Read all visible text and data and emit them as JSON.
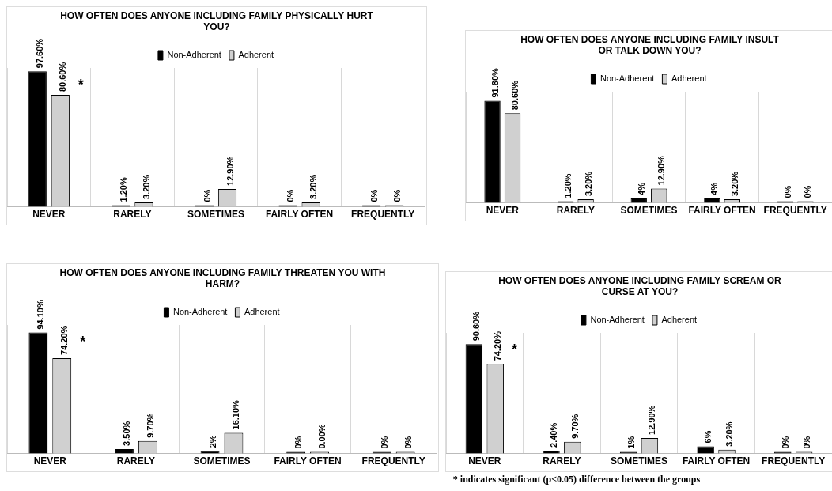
{
  "chart_data": [
    {
      "type": "bar",
      "title": "HOW OFTEN DOES ANYONE INCLUDING FAMILY PHYSICALLY HURT YOU?",
      "categories": [
        "NEVER",
        "RARELY",
        "SOMETIMES",
        "FAIRLY OFTEN",
        "FREQUENTLY"
      ],
      "grid": "x",
      "legend": "top",
      "series": [
        {
          "name": "Non-Adherent",
          "color": "#000000",
          "values": [
            97.6,
            1.2,
            0,
            0,
            0
          ],
          "value_labels": [
            "97.60%",
            "1.20%",
            "0%",
            "0%",
            "0%"
          ]
        },
        {
          "name": "Adherent",
          "color": "#d0d0d0",
          "values": [
            80.6,
            3.2,
            12.9,
            3.2,
            0
          ],
          "value_labels": [
            "80.60%",
            "3.20%",
            "12.90%",
            "3.20%",
            "0%"
          ]
        }
      ],
      "annotations": [
        "*"
      ]
    },
    {
      "type": "bar",
      "title": "HOW OFTEN DOES ANYONE INCLUDING FAMILY INSULT OR TALK DOWN YOU?",
      "categories": [
        "NEVER",
        "RARELY",
        "SOMETIMES",
        "FAIRLY OFTEN",
        "FREQUENTLY"
      ],
      "grid": "x",
      "legend": "top",
      "series": [
        {
          "name": "Non-Adherent",
          "color": "#000000",
          "values": [
            91.8,
            1.2,
            4,
            4,
            0
          ],
          "value_labels": [
            "91.80%",
            "1.20%",
            "4%",
            "4%",
            "0%"
          ]
        },
        {
          "name": "Adherent",
          "color": "#d0d0d0",
          "values": [
            80.6,
            3.2,
            12.9,
            3.2,
            0
          ],
          "value_labels": [
            "80.60%",
            "3.20%",
            "12.90%",
            "3.20%",
            "0%"
          ]
        }
      ]
    },
    {
      "type": "bar",
      "title": "HOW OFTEN DOES ANYONE INCLUDING FAMILY THREATEN YOU WITH HARM?",
      "categories": [
        "NEVER",
        "RARELY",
        "SOMETIMES",
        "FAIRLY OFTEN",
        "FREQUENTLY"
      ],
      "grid": "x",
      "legend": "top",
      "series": [
        {
          "name": "Non-Adherent",
          "color": "#000000",
          "values": [
            94.1,
            3.5,
            2,
            0,
            0
          ],
          "value_labels": [
            "94.10%",
            "3.50%",
            "2%",
            "0%",
            "0%"
          ]
        },
        {
          "name": "Adherent",
          "color": "#d0d0d0",
          "values": [
            74.2,
            9.7,
            16.1,
            0,
            0
          ],
          "value_labels": [
            "74.20%",
            "9.70%",
            "16.10%",
            "0.00%",
            "0%"
          ]
        }
      ],
      "annotations": [
        "*"
      ]
    },
    {
      "type": "bar",
      "title": "HOW OFTEN DOES ANYONE INCLUDING FAMILY SCREAM OR CURSE AT YOU?",
      "categories": [
        "NEVER",
        "RARELY",
        "SOMETIMES",
        "FAIRLY OFTEN",
        "FREQUENTLY"
      ],
      "grid": "x",
      "legend": "top",
      "series": [
        {
          "name": "Non-Adherent",
          "color": "#000000",
          "values": [
            90.6,
            2.4,
            1,
            6,
            0
          ],
          "value_labels": [
            "90.60%",
            "2.40%",
            "1%",
            "6%",
            "0%"
          ]
        },
        {
          "name": "Adherent",
          "color": "#d0d0d0",
          "values": [
            74.2,
            9.7,
            12.9,
            3.2,
            0
          ],
          "value_labels": [
            "74.20%",
            "9.70%",
            "12.90%",
            "3.20%",
            "0%"
          ]
        }
      ],
      "annotations": [
        "*",
        "* indicates significant (p<0.05) difference between the groups"
      ]
    }
  ]
}
